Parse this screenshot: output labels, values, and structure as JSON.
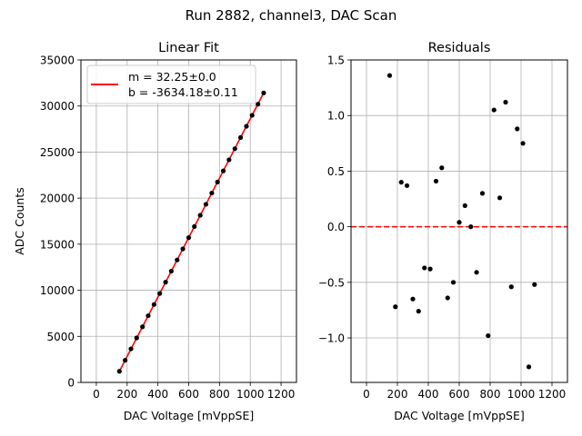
{
  "suptitle": "Run 2882, channel3, DAC Scan",
  "chart_data": [
    {
      "type": "scatter",
      "title": "Linear Fit",
      "xlabel": "DAC Voltage [mVppSE]",
      "ylabel": "ADC Counts",
      "xlim": [
        -100,
        1300
      ],
      "ylim": [
        0,
        35000
      ],
      "xticks": [
        "0",
        "200",
        "400",
        "600",
        "800",
        "1000",
        "1200"
      ],
      "yticks": [
        "0",
        "5000",
        "10000",
        "15000",
        "20000",
        "25000",
        "30000",
        "35000"
      ],
      "grid": true,
      "legend": {
        "position": "top-left",
        "entries": [
          "m = 32.25±0.0",
          "b = -3634.18±0.11"
        ]
      },
      "fit": {
        "m": 32.25,
        "b": -3634.18,
        "color": "#ff0000"
      },
      "points": {
        "x": [
          150,
          187,
          225,
          262,
          300,
          337,
          375,
          412,
          450,
          487,
          525,
          562,
          600,
          637,
          675,
          712,
          750,
          787,
          825,
          862,
          900,
          937,
          975,
          1012,
          1050,
          1087
        ],
        "y": [
          1205,
          2400,
          3640,
          4830,
          6040,
          7240,
          8460,
          9650,
          10880,
          12080,
          13290,
          14490,
          15710,
          16920,
          18140,
          19330,
          20550,
          21750,
          22960,
          24160,
          25370,
          26580,
          27800,
          28990,
          30200,
          31420
        ]
      }
    },
    {
      "type": "scatter",
      "title": "Residuals",
      "xlabel": "DAC Voltage [mVppSE]",
      "ylabel": "",
      "xlim": [
        -100,
        1300
      ],
      "ylim": [
        -1.4,
        1.5
      ],
      "xticks": [
        "0",
        "200",
        "400",
        "600",
        "800",
        "1000",
        "1200"
      ],
      "yticks": [
        "−1.0",
        "−0.5",
        "0.0",
        "0.5",
        "1.0",
        "1.5"
      ],
      "grid": true,
      "reference_line": {
        "y": 0,
        "style": "dashed",
        "color": "#ff0000"
      },
      "points": {
        "x": [
          150,
          187,
          225,
          262,
          300,
          337,
          375,
          412,
          450,
          487,
          525,
          562,
          600,
          637,
          675,
          712,
          750,
          787,
          825,
          862,
          900,
          937,
          975,
          1012,
          1050,
          1087
        ],
        "y": [
          1.36,
          -0.72,
          0.4,
          0.37,
          -0.65,
          -0.76,
          -0.37,
          -0.38,
          0.41,
          0.53,
          -0.64,
          -0.5,
          0.04,
          0.19,
          0.0,
          -0.41,
          0.3,
          -0.98,
          1.05,
          0.26,
          1.12,
          -0.54,
          0.88,
          0.75,
          -1.26,
          -0.52
        ]
      }
    }
  ]
}
